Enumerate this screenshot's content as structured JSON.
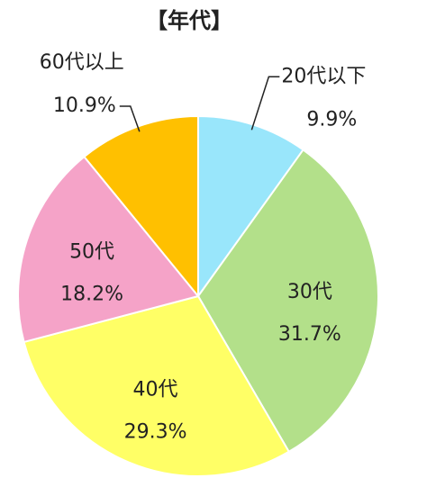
{
  "chart_data": {
    "type": "pie",
    "title": "【年代】",
    "categories": [
      "20代以下",
      "30代",
      "40代",
      "50代",
      "60代以上"
    ],
    "values": [
      9.9,
      31.7,
      29.3,
      18.2,
      10.9
    ],
    "value_labels": [
      "9.9%",
      "31.7%",
      "29.3%",
      "18.2%",
      "10.9%"
    ],
    "colors": [
      "#99e6fb",
      "#b3e08a",
      "#ffff66",
      "#f5a3c8",
      "#ffc000"
    ]
  }
}
